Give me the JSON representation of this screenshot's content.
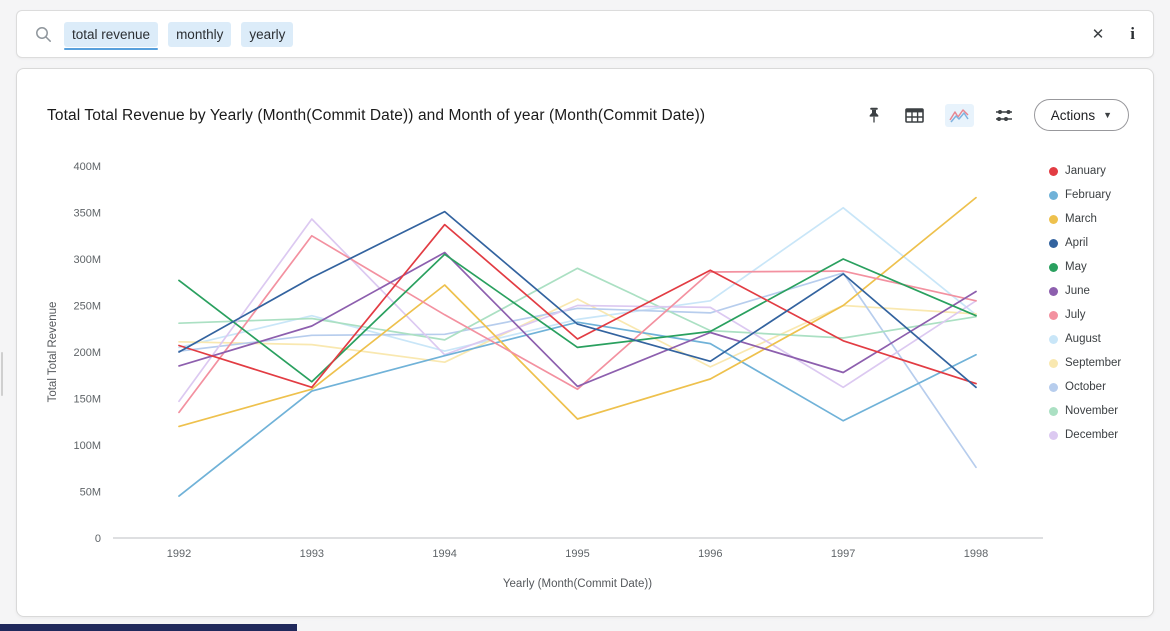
{
  "search_bar": {
    "tokens": [
      {
        "label": "total revenue",
        "active": true
      },
      {
        "label": "monthly",
        "active": false
      },
      {
        "label": "yearly",
        "active": false
      }
    ],
    "clear_icon": "✕",
    "info_icon": "i"
  },
  "toolbar": {
    "actions_label": "Actions",
    "caret": "▼"
  },
  "chart": {
    "title": "Total Total Revenue by Yearly (Month(Commit Date)) and Month of year (Month(Commit Date))"
  },
  "chart_data": {
    "type": "line",
    "title": "Total Total Revenue by Yearly (Month(Commit Date)) and Month of year (Month(Commit Date))",
    "xlabel": "Yearly (Month(Commit Date))",
    "ylabel": "Total Total Revenue",
    "x": [
      1992,
      1993,
      1994,
      1995,
      1996,
      1997,
      1998
    ],
    "ylim": [
      0,
      400
    ],
    "values_unit": "millions",
    "y_ticks": [
      "0",
      "50M",
      "100M",
      "150M",
      "200M",
      "250M",
      "300M",
      "350M",
      "400M"
    ],
    "grid": false,
    "legend_position": "right",
    "series": [
      {
        "name": "January",
        "color": "#e23c43",
        "values": [
          207,
          162,
          337,
          214,
          288,
          212,
          166
        ]
      },
      {
        "name": "February",
        "color": "#70b2d8",
        "values": [
          45,
          158,
          196,
          232,
          209,
          126,
          197
        ]
      },
      {
        "name": "March",
        "color": "#eec14d",
        "values": [
          120,
          160,
          272,
          128,
          171,
          250,
          366
        ]
      },
      {
        "name": "April",
        "color": "#33639f",
        "values": [
          200,
          280,
          351,
          230,
          190,
          284,
          162
        ]
      },
      {
        "name": "May",
        "color": "#2aa05f",
        "values": [
          277,
          168,
          305,
          205,
          222,
          300,
          239
        ]
      },
      {
        "name": "June",
        "color": "#8d5fae",
        "values": [
          185,
          228,
          307,
          163,
          221,
          178,
          265
        ]
      },
      {
        "name": "July",
        "color": "#f391a0",
        "values": [
          135,
          325,
          240,
          160,
          286,
          287,
          255
        ]
      },
      {
        "name": "August",
        "color": "#c9e6f8",
        "values": [
          205,
          239,
          201,
          235,
          255,
          355,
          240
        ]
      },
      {
        "name": "September",
        "color": "#f9e8b0",
        "values": [
          211,
          208,
          189,
          257,
          184,
          250,
          241
        ]
      },
      {
        "name": "October",
        "color": "#b7cded",
        "values": [
          201,
          218,
          219,
          247,
          242,
          285,
          76
        ]
      },
      {
        "name": "November",
        "color": "#abe0c3",
        "values": [
          231,
          236,
          213,
          290,
          223,
          215,
          238
        ]
      },
      {
        "name": "December",
        "color": "#dcc9f1",
        "values": [
          147,
          343,
          197,
          250,
          248,
          162,
          255
        ]
      }
    ]
  }
}
